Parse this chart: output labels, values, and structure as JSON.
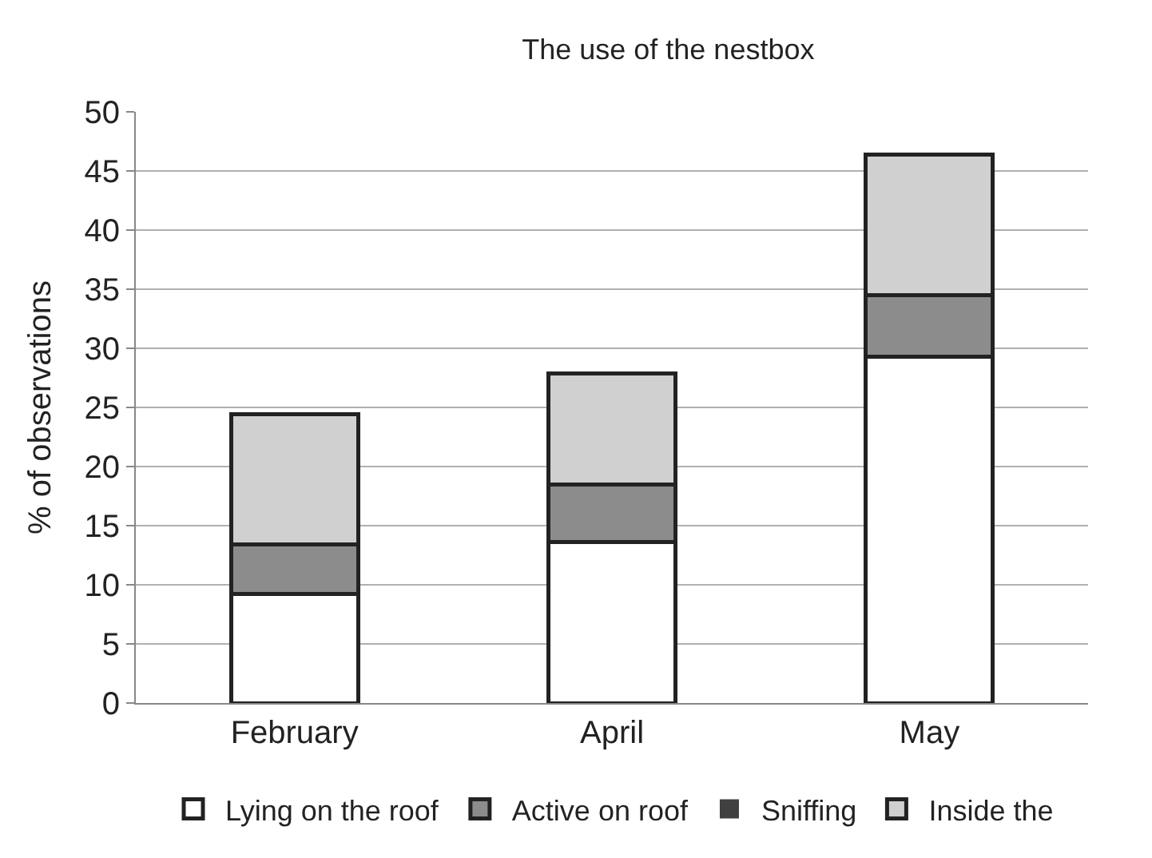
{
  "chart_data": {
    "type": "bar",
    "title": "The use of the nestbox",
    "ylabel": "% of observations",
    "categories": [
      "February",
      "April",
      "May"
    ],
    "stacked": true,
    "series": [
      {
        "name": "Lying on the roof",
        "color": "#ffffff",
        "values": [
          9.2,
          13.6,
          29.3
        ]
      },
      {
        "name": "Active on roof",
        "color": "#8c8c8c",
        "values": [
          4.2,
          4.9,
          5.2
        ]
      },
      {
        "name": "Sniffing",
        "color": "#404040",
        "values": [
          0,
          0,
          0
        ]
      },
      {
        "name": "Inside the",
        "color": "#d0d0d0",
        "values": [
          11.0,
          9.4,
          11.9
        ]
      }
    ],
    "ylim": [
      0,
      50
    ],
    "yticks": [
      0,
      5,
      10,
      15,
      20,
      25,
      30,
      35,
      40,
      45,
      50
    ],
    "grid": "y",
    "legend": "bottom"
  }
}
